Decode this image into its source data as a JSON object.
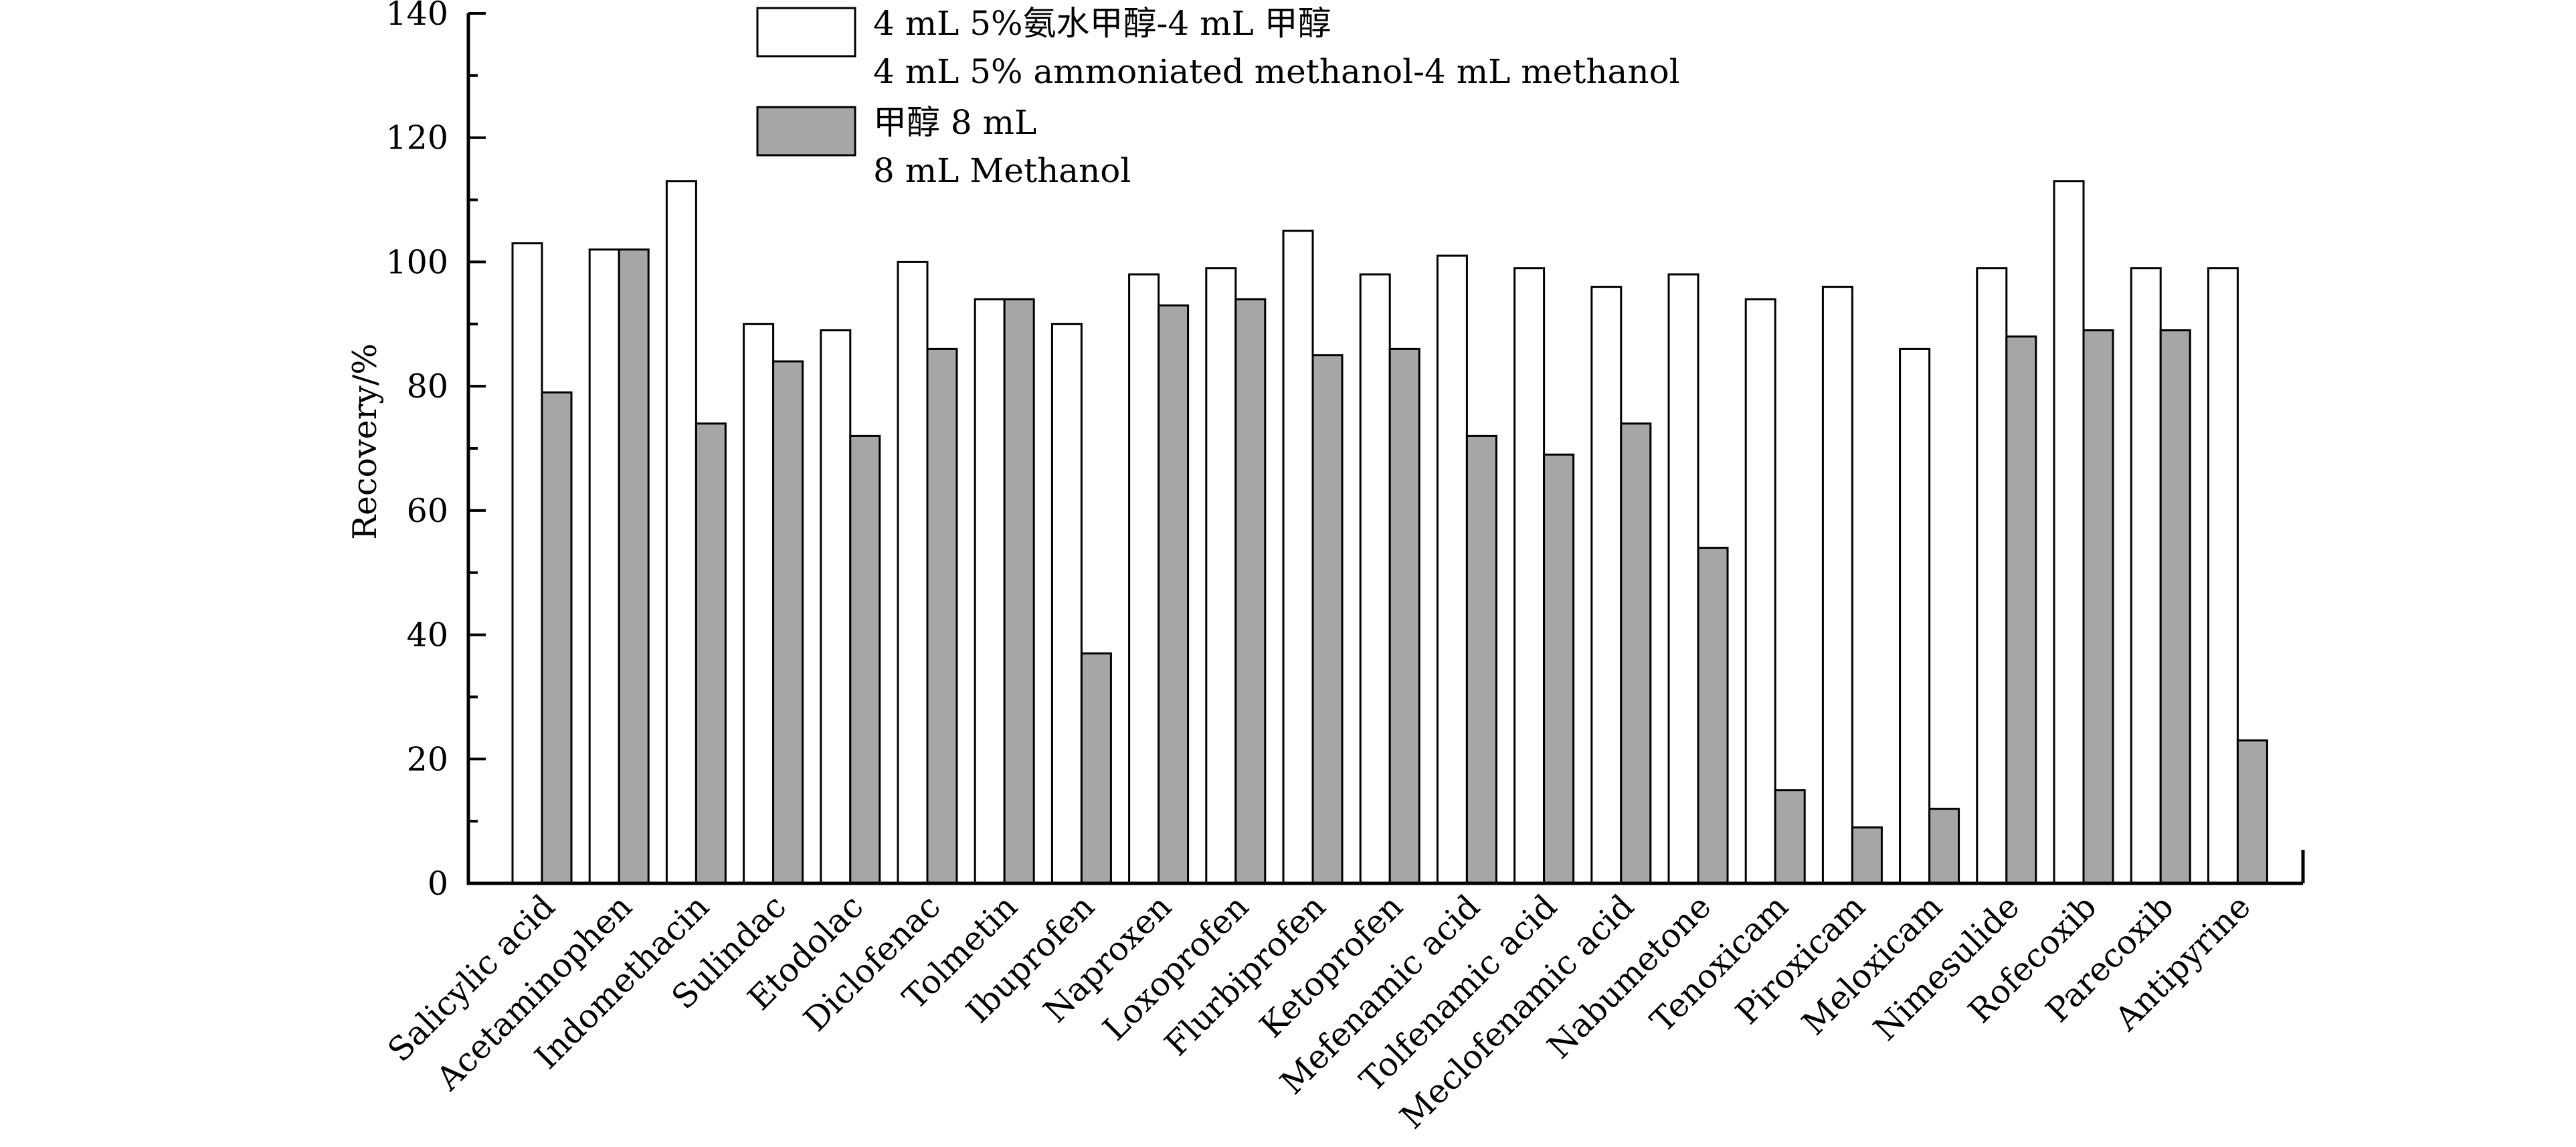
{
  "chart_data": {
    "type": "bar",
    "title": "",
    "xlabel": "",
    "ylabel": "Recovery/%",
    "ylim": [
      0,
      140
    ],
    "yticks": [
      "0",
      "20",
      "40",
      "60",
      "80",
      "100",
      "120",
      "140"
    ],
    "grid": false,
    "legend_position": "top-left",
    "categories": [
      "Salicylic acid",
      "Acetaminophen",
      "Indomethacin",
      "Sulindac",
      "Etodolac",
      "Diclofenac",
      "Tolmetin",
      "Ibuprofen",
      "Naproxen",
      "Loxoprofen",
      "Flurbiprofen",
      "Ketoprofen",
      "Mefenamic acid",
      "Tolfenamic acid",
      "Meclofenamic acid",
      "Nabumetone",
      "Tenoxicam",
      "Piroxicam",
      "Meloxicam",
      "Nimesulide",
      "Rofecoxib",
      "Parecoxib",
      "Antipyrine"
    ],
    "series": [
      {
        "name": "4 mL 5%氨水甲醇-4 mL 甲醇",
        "name_en": "4 mL 5% ammoniated methanol-4 mL methanol",
        "color": "#ffffff",
        "values": [
          103,
          102,
          113,
          90,
          89,
          100,
          94,
          90,
          98,
          99,
          105,
          98,
          101,
          99,
          96,
          98,
          94,
          96,
          86,
          99,
          113,
          99,
          99
        ]
      },
      {
        "name": "甲醇 8 mL",
        "name_en": "8 mL Methanol",
        "color": "#a6a6a6",
        "values": [
          79,
          102,
          74,
          84,
          72,
          86,
          94,
          37,
          93,
          94,
          85,
          86,
          72,
          69,
          74,
          54,
          15,
          9,
          12,
          88,
          89,
          89,
          23
        ]
      }
    ]
  }
}
